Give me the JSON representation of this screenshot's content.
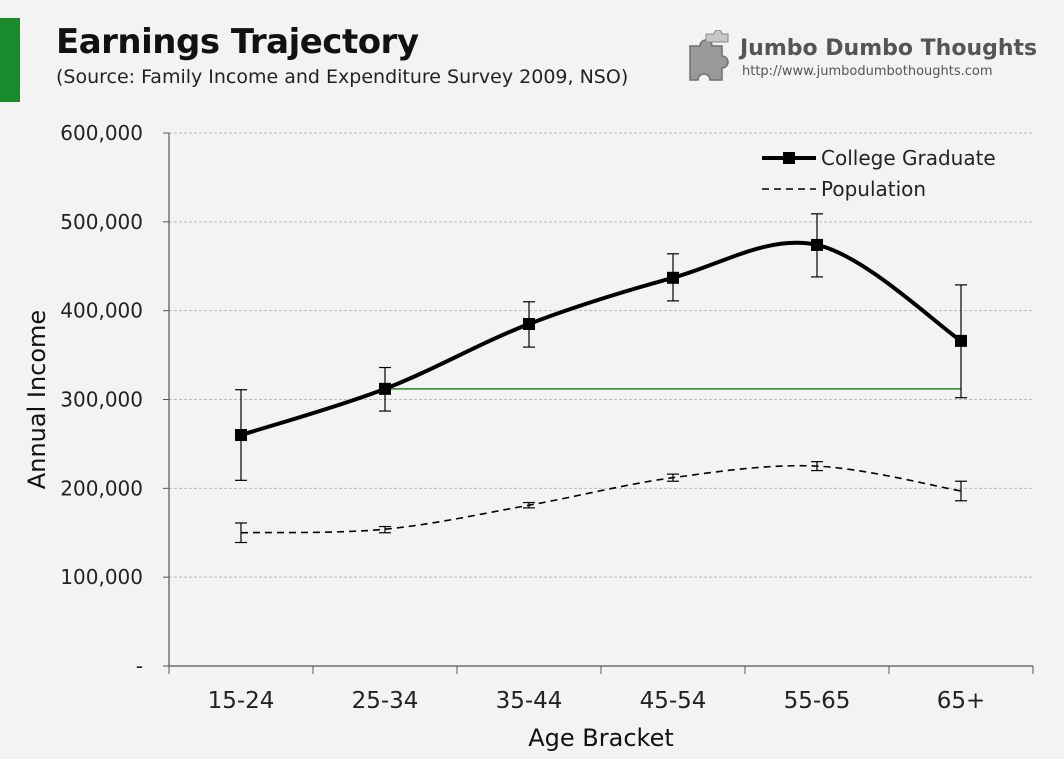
{
  "header": {
    "title": "Earnings Trajectory",
    "subtitle": "(Source: Family Income and Expenditure Survey 2009, NSO)"
  },
  "brand": {
    "name": "Jumbo Dumbo Thoughts",
    "url": "http://www.jumbodumbothoughts.com",
    "icon": "puzzle-piece-icon"
  },
  "colors": {
    "accent": "#1a8a2e",
    "reference_line": "#2e7d32",
    "series": "#000000",
    "grid": "#bbbbbb"
  },
  "chart_data": {
    "type": "line",
    "title": "Earnings Trajectory",
    "subtitle": "(Source: Family Income and Expenditure Survey 2009, NSO)",
    "xlabel": "Age Bracket",
    "ylabel": "Annual Income",
    "categories": [
      "15-24",
      "25-34",
      "35-44",
      "45-54",
      "55-65",
      "65+"
    ],
    "ylim": [
      0,
      600000
    ],
    "yticks": [
      0,
      100000,
      200000,
      300000,
      400000,
      500000,
      600000
    ],
    "ytick_labels": [
      "-",
      "100,000",
      "200,000",
      "300,000",
      "400,000",
      "500,000",
      "600,000"
    ],
    "grid": true,
    "legend_position": "top-right",
    "series": [
      {
        "name": "College Graduate",
        "style": "solid",
        "marker": "square",
        "values": [
          260000,
          312000,
          385000,
          437000,
          474000,
          366000
        ],
        "error_low": [
          209000,
          287000,
          359000,
          411000,
          438000,
          302000
        ],
        "error_high": [
          311000,
          336000,
          410000,
          464000,
          509000,
          429000
        ]
      },
      {
        "name": "Population",
        "style": "dashed",
        "marker": "none",
        "values": [
          150000,
          154000,
          181000,
          212000,
          225000,
          197000
        ],
        "error_low": [
          139000,
          150000,
          178000,
          208000,
          220000,
          186000
        ],
        "error_high": [
          161000,
          157000,
          184000,
          216000,
          230000,
          208000
        ]
      }
    ],
    "reference_line": {
      "value": 312000,
      "from_category": "25-34",
      "to_category": "65+"
    }
  }
}
